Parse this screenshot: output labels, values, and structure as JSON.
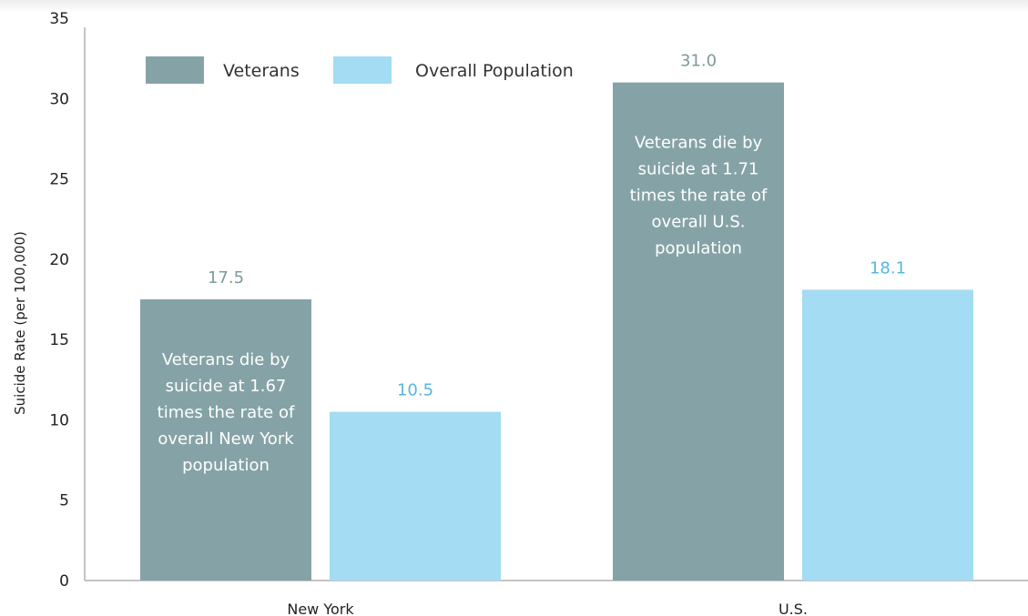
{
  "chart_data": {
    "type": "bar",
    "ylabel": "Suicide Rate (per 100,000)",
    "ylim": [
      0,
      35
    ],
    "yticks": [
      0,
      5,
      10,
      15,
      20,
      25,
      30,
      35
    ],
    "categories": [
      "New York",
      "U.S."
    ],
    "series": [
      {
        "name": "Veterans",
        "values": [
          17.5,
          31.0
        ],
        "labels": [
          "17.5",
          "31.0"
        ]
      },
      {
        "name": "Overall Population",
        "values": [
          10.5,
          18.1
        ],
        "labels": [
          "10.5",
          "18.1"
        ]
      }
    ],
    "colors": {
      "veterans": "#85a3a6",
      "overall": "#a3dcf3",
      "veterans_label": "#7e9a9c",
      "overall_label": "#58b5df"
    },
    "grid": false,
    "legend_position": "top-left",
    "annotations": [
      {
        "category": "New York",
        "lines": [
          "Veterans die by",
          "suicide at 1.67",
          "times the rate of",
          "overall New York",
          "population"
        ]
      },
      {
        "category": "U.S.",
        "lines": [
          "Veterans die by",
          "suicide at 1.71",
          "times the rate of",
          "overall U.S.",
          "population"
        ]
      }
    ]
  }
}
